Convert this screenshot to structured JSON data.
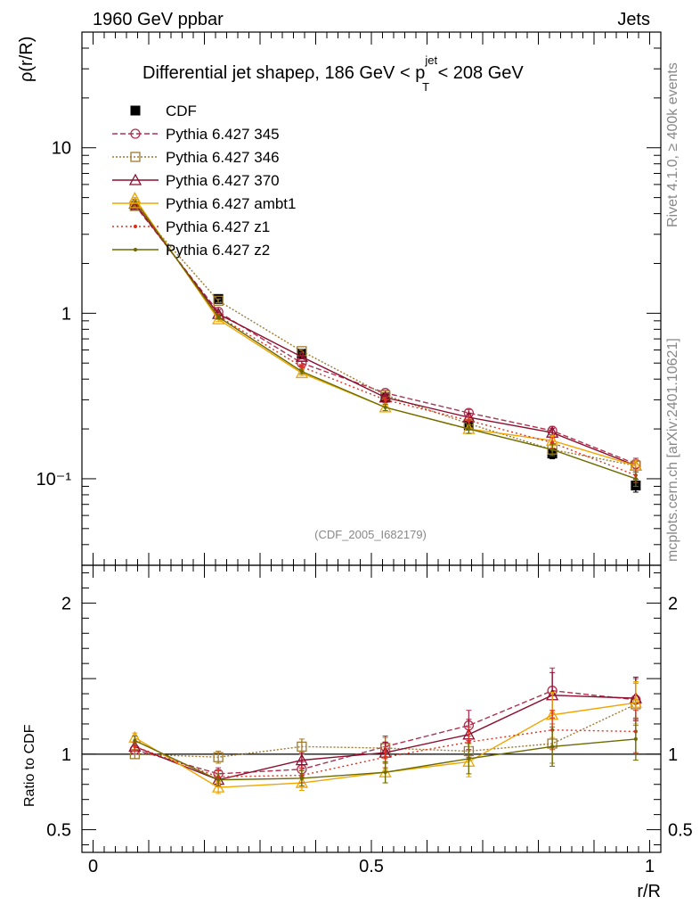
{
  "header": {
    "left": "1960 GeV ppbar",
    "right": "Jets"
  },
  "side_labels": {
    "rivet": "Rivet 4.1.0, ≥ 400k events",
    "mcplots": "mcplots.cern.ch [arXiv:2401.10621]"
  },
  "title": {
    "prefix": "Differential jet shapeρ, 186 GeV < p",
    "sup": "jet",
    "sub": "T",
    "suffix": " < 208 GeV"
  },
  "watermark": "(CDF_2005_I682179)",
  "chart_data": [
    {
      "panel": "main",
      "type": "line",
      "yscale": "log",
      "ylabel": "ρ(r/R)",
      "xlim": [
        -0.02,
        1.02
      ],
      "ylim": [
        0.03,
        50
      ],
      "y_ticks": [
        {
          "value": 10,
          "label": "10"
        },
        {
          "value": 1,
          "label": "1"
        },
        {
          "value": 0.1,
          "label": "10⁻¹"
        }
      ],
      "x": [
        0.075,
        0.225,
        0.375,
        0.525,
        0.675,
        0.825,
        0.975
      ],
      "series": [
        {
          "name": "CDF",
          "color": "#000000",
          "marker": "filled-square",
          "dash": "none",
          "values": [
            4.45,
            1.22,
            0.57,
            0.31,
            0.21,
            0.142,
            0.091
          ],
          "errors": [
            0.2,
            0.05,
            0.03,
            0.02,
            0.012,
            0.01,
            0.008
          ]
        },
        {
          "name": "Pythia 6.427 345",
          "color": "#b03050",
          "marker": "open-circle",
          "dash": "6,3",
          "values": [
            4.5,
            1.02,
            0.5,
            0.33,
            0.25,
            0.195,
            0.123
          ],
          "errors": [
            0.06,
            0.03,
            0.015,
            0.012,
            0.012,
            0.012,
            0.01
          ]
        },
        {
          "name": "Pythia 6.427 346",
          "color": "#a07a30",
          "marker": "open-square",
          "dash": "2,2",
          "values": [
            4.45,
            1.19,
            0.59,
            0.32,
            0.215,
            0.15,
            0.12
          ],
          "errors": [
            0.06,
            0.03,
            0.015,
            0.012,
            0.012,
            0.012,
            0.01
          ]
        },
        {
          "name": "Pythia 6.427 370",
          "color": "#8b0f2e",
          "marker": "open-triangle",
          "dash": "none",
          "values": [
            4.6,
            0.99,
            0.545,
            0.31,
            0.235,
            0.19,
            0.12
          ],
          "errors": [
            0.06,
            0.03,
            0.015,
            0.012,
            0.012,
            0.012,
            0.01
          ]
        },
        {
          "name": "Pythia 6.427 ambt1",
          "color": "#f0a500",
          "marker": "open-triangle",
          "dash": "none",
          "values": [
            4.95,
            0.92,
            0.435,
            0.27,
            0.2,
            0.17,
            0.12
          ],
          "errors": [
            0.06,
            0.03,
            0.015,
            0.012,
            0.012,
            0.012,
            0.01
          ]
        },
        {
          "name": "Pythia 6.427 z1",
          "color": "#e03020",
          "marker": "dot",
          "dash": "2,3",
          "values": [
            4.7,
            0.96,
            0.475,
            0.3,
            0.225,
            0.165,
            0.105
          ],
          "errors": [
            0.06,
            0.03,
            0.015,
            0.012,
            0.012,
            0.012,
            0.01
          ]
        },
        {
          "name": "Pythia 6.427 z2",
          "color": "#6b6b00",
          "marker": "dot",
          "dash": "none",
          "values": [
            4.8,
            0.95,
            0.445,
            0.27,
            0.2,
            0.15,
            0.1
          ],
          "errors": [
            0.06,
            0.03,
            0.015,
            0.012,
            0.012,
            0.012,
            0.01
          ]
        }
      ]
    },
    {
      "panel": "ratio",
      "type": "line",
      "yscale": "linear",
      "ylabel": "Ratio to CDF",
      "xlabel": "r/R",
      "xlim": [
        -0.02,
        1.02
      ],
      "ylim": [
        0.35,
        2.25
      ],
      "x_ticks": [
        {
          "value": 0,
          "label": "0"
        },
        {
          "value": 0.5,
          "label": "0.5"
        },
        {
          "value": 1,
          "label": "1"
        }
      ],
      "y_ticks": [
        {
          "value": 2,
          "label": "2"
        },
        {
          "value": 1,
          "label": "1"
        },
        {
          "value": 0.5,
          "label": "0.5"
        }
      ],
      "reference_line": 1,
      "x": [
        0.075,
        0.225,
        0.375,
        0.525,
        0.675,
        0.825,
        0.975
      ],
      "series": [
        {
          "name": "Pythia 6.427 345",
          "color": "#b03050",
          "dash": "6,3",
          "marker": "open-circle",
          "values": [
            1.03,
            0.87,
            0.9,
            1.05,
            1.19,
            1.42,
            1.36
          ],
          "errors": [
            0.03,
            0.04,
            0.05,
            0.07,
            0.1,
            0.15,
            0.14
          ]
        },
        {
          "name": "Pythia 6.427 346",
          "color": "#a07a30",
          "dash": "2,2",
          "marker": "open-square",
          "values": [
            1.0,
            0.98,
            1.05,
            1.04,
            1.02,
            1.07,
            1.33
          ],
          "errors": [
            0.03,
            0.04,
            0.05,
            0.07,
            0.1,
            0.13,
            0.14
          ]
        },
        {
          "name": "Pythia 6.427 370",
          "color": "#8b0f2e",
          "dash": "none",
          "marker": "open-triangle",
          "values": [
            1.05,
            0.83,
            0.96,
            1.01,
            1.13,
            1.39,
            1.37
          ],
          "errors": [
            0.03,
            0.04,
            0.05,
            0.07,
            0.1,
            0.15,
            0.14
          ]
        },
        {
          "name": "Pythia 6.427 ambt1",
          "color": "#f0a500",
          "dash": "none",
          "marker": "open-triangle",
          "values": [
            1.11,
            0.78,
            0.81,
            0.88,
            0.95,
            1.26,
            1.34
          ],
          "errors": [
            0.03,
            0.04,
            0.05,
            0.07,
            0.1,
            0.15,
            0.14
          ]
        },
        {
          "name": "Pythia 6.427 z1",
          "color": "#e03020",
          "dash": "2,3",
          "marker": "dot",
          "values": [
            1.05,
            0.85,
            0.86,
            0.98,
            1.08,
            1.16,
            1.15
          ],
          "errors": [
            0.03,
            0.04,
            0.05,
            0.07,
            0.1,
            0.13,
            0.14
          ]
        },
        {
          "name": "Pythia 6.427 z2",
          "color": "#6b6b00",
          "dash": "none",
          "marker": "dot",
          "values": [
            1.09,
            0.83,
            0.84,
            0.88,
            0.97,
            1.05,
            1.1
          ],
          "errors": [
            0.03,
            0.04,
            0.05,
            0.07,
            0.1,
            0.13,
            0.14
          ]
        }
      ]
    }
  ]
}
